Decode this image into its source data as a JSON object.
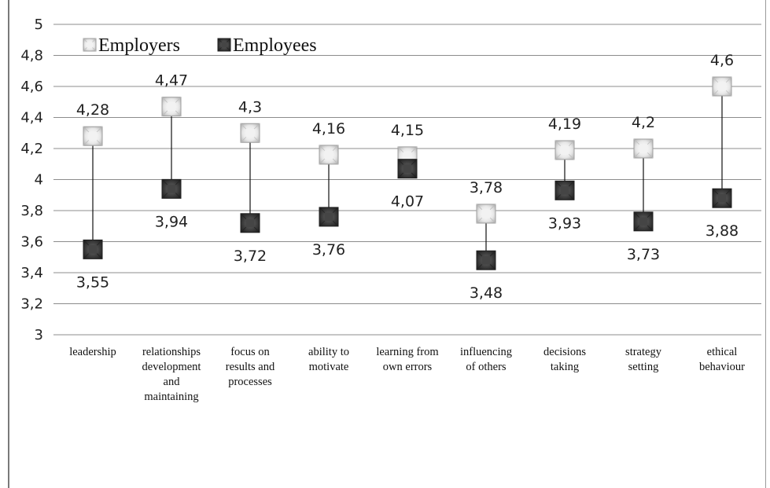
{
  "chart_data": {
    "type": "scatter",
    "categories": [
      [
        "leadership"
      ],
      [
        "relationships",
        "development",
        "and",
        "maintaining"
      ],
      [
        "focus on",
        "results and",
        "processes"
      ],
      [
        "ability to",
        "motivate"
      ],
      [
        "learning from",
        "own errors"
      ],
      [
        "influencing",
        "of others"
      ],
      [
        "decisions",
        "taking"
      ],
      [
        "strategy",
        "setting"
      ],
      [
        "ethical",
        "behaviour"
      ]
    ],
    "series": [
      {
        "name": "Employers",
        "values": [
          4.28,
          4.47,
          4.3,
          4.16,
          4.15,
          3.78,
          4.19,
          4.2,
          4.6
        ],
        "labels": [
          "4,28",
          "4,47",
          "4,3",
          "4,16",
          "4,15",
          "3,78",
          "4,19",
          "4,2",
          "4,6"
        ],
        "color": "#e6e6e6"
      },
      {
        "name": "Employees",
        "values": [
          3.55,
          3.94,
          3.72,
          3.76,
          4.07,
          3.48,
          3.93,
          3.73,
          3.88
        ],
        "labels": [
          "3,55",
          "3,94",
          "3,72",
          "3,76",
          "4,07",
          "3,48",
          "3,93",
          "3,73",
          "3,88"
        ],
        "color": "#4a4a4a"
      }
    ],
    "ylim": [
      3,
      5
    ],
    "yticks": [
      3,
      3.2,
      3.4,
      3.6,
      3.8,
      4,
      4.2,
      4.4,
      4.6,
      4.8,
      5
    ],
    "ytick_labels": [
      "3",
      "3,2",
      "3,4",
      "3,6",
      "3,8",
      "4",
      "4,2",
      "4,4",
      "4,6",
      "4,8",
      "5"
    ],
    "grid": true,
    "high_low_lines": true,
    "legend_position": "top-left"
  }
}
